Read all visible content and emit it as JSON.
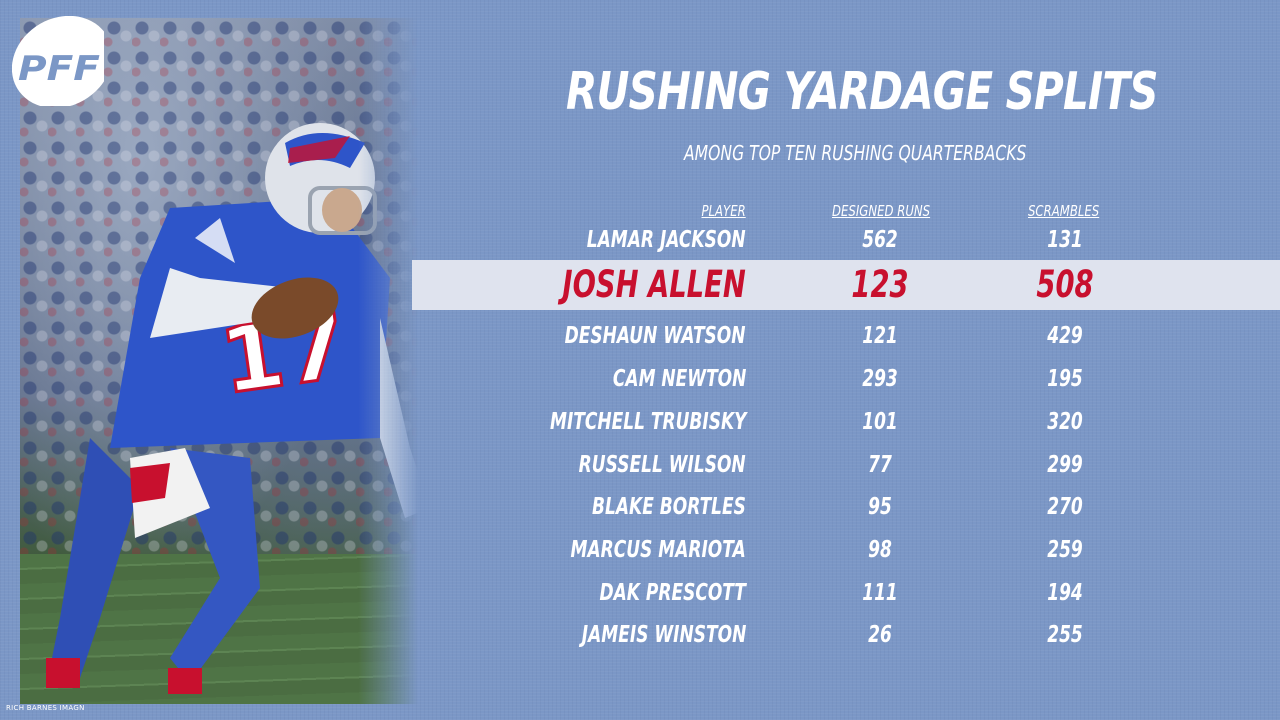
{
  "brand": {
    "logo_text": "PFF"
  },
  "photo": {
    "credit": "RICH BARNES IMAGN"
  },
  "title": "RUSHING YARDAGE SPLITS",
  "subtitle": "AMONG TOP TEN RUSHING QUARTERBACKS",
  "table": {
    "headers": {
      "player": "PLAYER",
      "designed": "DESIGNED RUNS",
      "scrambles": "SCRAMBLES"
    },
    "rows": [
      {
        "player": "LAMAR JACKSON",
        "designed": "562",
        "scrambles": "131"
      },
      {
        "player": "JOSH ALLEN",
        "designed": "123",
        "scrambles": "508",
        "highlight": true
      },
      {
        "player": "DESHAUN WATSON",
        "designed": "121",
        "scrambles": "429"
      },
      {
        "player": "CAM NEWTON",
        "designed": "293",
        "scrambles": "195"
      },
      {
        "player": "MITCHELL TRUBISKY",
        "designed": "101",
        "scrambles": "320"
      },
      {
        "player": "RUSSELL WILSON",
        "designed": "77",
        "scrambles": "299"
      },
      {
        "player": "BLAKE BORTLES",
        "designed": "95",
        "scrambles": "270"
      },
      {
        "player": "MARCUS MARIOTA",
        "designed": "98",
        "scrambles": "259"
      },
      {
        "player": "DAK PRESCOTT",
        "designed": "111",
        "scrambles": "194"
      },
      {
        "player": "JAMEIS WINSTON",
        "designed": "26",
        "scrambles": "255"
      }
    ]
  },
  "colors": {
    "background": "#7b97c6",
    "highlight_band": "#dfe3ee",
    "highlight_text": "#c8102e",
    "text": "#ffffff"
  }
}
